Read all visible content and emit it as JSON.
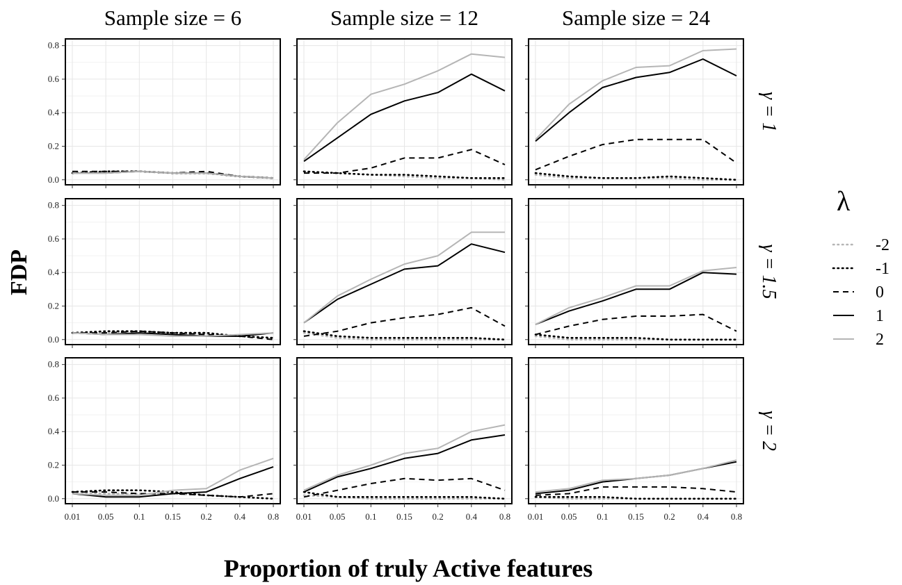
{
  "chart_data": {
    "type": "line",
    "facet_columns": [
      "Sample size = 6",
      "Sample size = 12",
      "Sample size = 24"
    ],
    "facet_rows": [
      "γ = 1",
      "γ = 1.5",
      "γ = 2"
    ],
    "x_categories": [
      "0.01",
      "0.05",
      "0.1",
      "0.15",
      "0.2",
      "0.4",
      "0.8"
    ],
    "y_ticks": [
      "0.0",
      "0.2",
      "0.4",
      "0.6",
      "0.8"
    ],
    "ylim": [
      -0.03,
      0.84
    ],
    "xlabel": "Proportion of truly Active features",
    "ylabel": "FDP",
    "legend": {
      "title": "λ",
      "position": "right",
      "entries": [
        {
          "label": "-2",
          "style": "dotted",
          "color": "#b5b5b5"
        },
        {
          "label": "-1",
          "style": "dotted",
          "color": "#000000"
        },
        {
          "label": "0",
          "style": "dashed",
          "color": "#000000"
        },
        {
          "label": "1",
          "style": "solid",
          "color": "#000000"
        },
        {
          "label": "2",
          "style": "solid",
          "color": "#b5b5b5"
        }
      ]
    },
    "grid": true,
    "panels": [
      {
        "row": 0,
        "col": 0,
        "series": [
          {
            "name": "-2",
            "values": [
              0.04,
              0.05,
              0.05,
              0.04,
              0.04,
              0.02,
              0.01
            ]
          },
          {
            "name": "-1",
            "values": [
              0.04,
              0.05,
              0.05,
              0.04,
              0.04,
              0.02,
              0.01
            ]
          },
          {
            "name": "0",
            "values": [
              0.05,
              0.05,
              0.05,
              0.04,
              0.05,
              0.02,
              0.01
            ]
          },
          {
            "name": "1",
            "values": [
              0.04,
              0.04,
              0.05,
              0.04,
              0.04,
              0.02,
              0.01
            ]
          },
          {
            "name": "2",
            "values": [
              0.04,
              0.04,
              0.05,
              0.04,
              0.04,
              0.02,
              0.01
            ]
          }
        ]
      },
      {
        "row": 0,
        "col": 1,
        "series": [
          {
            "name": "-2",
            "values": [
              0.05,
              0.04,
              0.03,
              0.02,
              0.01,
              0.01,
              0.0
            ]
          },
          {
            "name": "-1",
            "values": [
              0.05,
              0.04,
              0.03,
              0.03,
              0.02,
              0.01,
              0.01
            ]
          },
          {
            "name": "0",
            "values": [
              0.04,
              0.04,
              0.07,
              0.13,
              0.13,
              0.18,
              0.09
            ]
          },
          {
            "name": "1",
            "values": [
              0.11,
              0.25,
              0.39,
              0.47,
              0.52,
              0.63,
              0.53
            ]
          },
          {
            "name": "2",
            "values": [
              0.12,
              0.34,
              0.51,
              0.57,
              0.65,
              0.75,
              0.73
            ]
          }
        ]
      },
      {
        "row": 0,
        "col": 2,
        "series": [
          {
            "name": "-2",
            "values": [
              0.03,
              0.01,
              0.01,
              0.01,
              0.01,
              0.0,
              0.0
            ]
          },
          {
            "name": "-1",
            "values": [
              0.04,
              0.02,
              0.01,
              0.01,
              0.02,
              0.01,
              0.0
            ]
          },
          {
            "name": "0",
            "values": [
              0.06,
              0.14,
              0.21,
              0.24,
              0.24,
              0.24,
              0.1
            ]
          },
          {
            "name": "1",
            "values": [
              0.23,
              0.4,
              0.55,
              0.61,
              0.64,
              0.72,
              0.62
            ]
          },
          {
            "name": "2",
            "values": [
              0.24,
              0.45,
              0.59,
              0.67,
              0.68,
              0.77,
              0.78
            ]
          }
        ]
      },
      {
        "row": 1,
        "col": 0,
        "series": [
          {
            "name": "-2",
            "values": [
              0.04,
              0.04,
              0.05,
              0.04,
              0.03,
              0.02,
              0.01
            ]
          },
          {
            "name": "-1",
            "values": [
              0.04,
              0.05,
              0.05,
              0.04,
              0.04,
              0.02,
              0.01
            ]
          },
          {
            "name": "0",
            "values": [
              0.04,
              0.04,
              0.05,
              0.04,
              0.03,
              0.02,
              0.0
            ]
          },
          {
            "name": "1",
            "values": [
              0.04,
              0.03,
              0.04,
              0.03,
              0.02,
              0.02,
              0.04
            ]
          },
          {
            "name": "2",
            "values": [
              0.04,
              0.03,
              0.03,
              0.02,
              0.02,
              0.03,
              0.04
            ]
          }
        ]
      },
      {
        "row": 1,
        "col": 1,
        "series": [
          {
            "name": "-2",
            "values": [
              0.04,
              0.01,
              0.0,
              0.0,
              0.0,
              0.0,
              0.0
            ]
          },
          {
            "name": "-1",
            "values": [
              0.05,
              0.02,
              0.01,
              0.01,
              0.01,
              0.01,
              0.0
            ]
          },
          {
            "name": "0",
            "values": [
              0.02,
              0.05,
              0.1,
              0.13,
              0.15,
              0.19,
              0.08
            ]
          },
          {
            "name": "1",
            "values": [
              0.1,
              0.24,
              0.33,
              0.42,
              0.44,
              0.57,
              0.52
            ]
          },
          {
            "name": "2",
            "values": [
              0.1,
              0.26,
              0.36,
              0.45,
              0.5,
              0.64,
              0.64
            ]
          }
        ]
      },
      {
        "row": 1,
        "col": 2,
        "series": [
          {
            "name": "-2",
            "values": [
              0.02,
              0.0,
              0.0,
              0.0,
              0.0,
              0.0,
              0.0
            ]
          },
          {
            "name": "-1",
            "values": [
              0.03,
              0.01,
              0.01,
              0.01,
              0.0,
              0.0,
              0.0
            ]
          },
          {
            "name": "0",
            "values": [
              0.03,
              0.08,
              0.12,
              0.14,
              0.14,
              0.15,
              0.05
            ]
          },
          {
            "name": "1",
            "values": [
              0.09,
              0.17,
              0.23,
              0.3,
              0.3,
              0.4,
              0.39
            ]
          },
          {
            "name": "2",
            "values": [
              0.09,
              0.19,
              0.25,
              0.32,
              0.32,
              0.41,
              0.43
            ]
          }
        ]
      },
      {
        "row": 2,
        "col": 0,
        "series": [
          {
            "name": "-2",
            "values": [
              0.04,
              0.03,
              0.03,
              0.03,
              0.02,
              0.01,
              0.0
            ]
          },
          {
            "name": "-1",
            "values": [
              0.04,
              0.05,
              0.05,
              0.04,
              0.02,
              0.01,
              0.0
            ]
          },
          {
            "name": "0",
            "values": [
              0.04,
              0.04,
              0.03,
              0.03,
              0.02,
              0.01,
              0.03
            ]
          },
          {
            "name": "1",
            "values": [
              0.03,
              0.01,
              0.01,
              0.03,
              0.04,
              0.12,
              0.19
            ]
          },
          {
            "name": "2",
            "values": [
              0.03,
              0.02,
              0.02,
              0.05,
              0.06,
              0.17,
              0.24
            ]
          }
        ]
      },
      {
        "row": 2,
        "col": 1,
        "series": [
          {
            "name": "-2",
            "values": [
              0.02,
              0.01,
              0.0,
              0.0,
              0.0,
              0.0,
              0.0
            ]
          },
          {
            "name": "-1",
            "values": [
              0.04,
              0.01,
              0.01,
              0.01,
              0.01,
              0.01,
              0.0
            ]
          },
          {
            "name": "0",
            "values": [
              0.01,
              0.05,
              0.09,
              0.12,
              0.11,
              0.12,
              0.05
            ]
          },
          {
            "name": "1",
            "values": [
              0.04,
              0.13,
              0.18,
              0.24,
              0.27,
              0.35,
              0.38
            ]
          },
          {
            "name": "2",
            "values": [
              0.05,
              0.14,
              0.2,
              0.27,
              0.3,
              0.4,
              0.44
            ]
          }
        ]
      },
      {
        "row": 2,
        "col": 2,
        "series": [
          {
            "name": "-2",
            "values": [
              0.01,
              0.0,
              0.0,
              0.0,
              0.0,
              0.0,
              0.0
            ]
          },
          {
            "name": "-1",
            "values": [
              0.01,
              0.01,
              0.01,
              0.0,
              0.0,
              0.0,
              0.0
            ]
          },
          {
            "name": "0",
            "values": [
              0.02,
              0.03,
              0.07,
              0.07,
              0.07,
              0.06,
              0.04
            ]
          },
          {
            "name": "1",
            "values": [
              0.03,
              0.05,
              0.1,
              0.12,
              0.14,
              0.18,
              0.22
            ]
          },
          {
            "name": "2",
            "values": [
              0.04,
              0.06,
              0.11,
              0.12,
              0.14,
              0.18,
              0.23
            ]
          }
        ]
      }
    ]
  }
}
